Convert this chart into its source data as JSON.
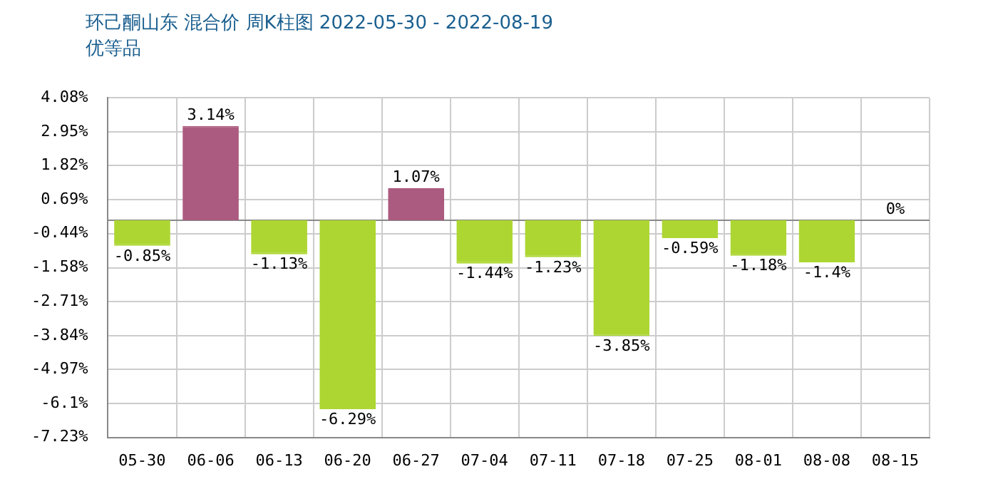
{
  "chart_data": {
    "type": "bar",
    "title": "环己酮山东 混合价 周K柱图 2022-05-30 - 2022-08-19",
    "subtitle": "优等品",
    "categories": [
      "05-30",
      "06-06",
      "06-13",
      "06-20",
      "06-27",
      "07-04",
      "07-11",
      "07-18",
      "07-25",
      "08-01",
      "08-08",
      "08-15"
    ],
    "values": [
      -0.85,
      3.14,
      -1.13,
      -6.29,
      1.07,
      -1.44,
      -1.23,
      -3.85,
      -0.59,
      -1.18,
      -1.4,
      0
    ],
    "colors": [
      "#add633",
      "#ab5a80",
      "#add633",
      "#add633",
      "#ab5a80",
      "#add633",
      "#add633",
      "#add633",
      "#add633",
      "#add633",
      "#add633",
      "#ab5a80"
    ],
    "value_labels": [
      "-0.85%",
      "3.14%",
      "-1.13%",
      "-6.29%",
      "1.07%",
      "-1.44%",
      "-1.23%",
      "-3.85%",
      "-0.59%",
      "-1.18%",
      "-1.4%",
      "0%"
    ],
    "ylim": [
      -7.23,
      4.08
    ],
    "yticks": [
      {
        "value": 4.08,
        "label": "4.08%"
      },
      {
        "value": 2.95,
        "label": "2.95%"
      },
      {
        "value": 1.82,
        "label": "1.82%"
      },
      {
        "value": 0.69,
        "label": "0.69%"
      },
      {
        "value": -0.44,
        "label": "-0.44%"
      },
      {
        "value": -1.58,
        "label": "-1.58%"
      },
      {
        "value": -2.71,
        "label": "-2.71%"
      },
      {
        "value": -3.84,
        "label": "-3.84%"
      },
      {
        "value": -4.97,
        "label": "-4.97%"
      },
      {
        "value": -6.1,
        "label": "-6.1%"
      },
      {
        "value": -7.23,
        "label": "-7.23%"
      }
    ],
    "grid": true
  }
}
